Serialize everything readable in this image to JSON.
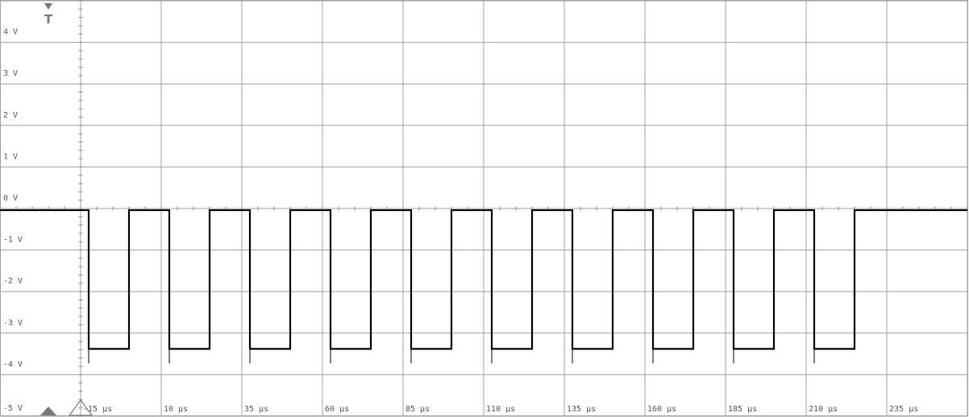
{
  "chart_data": {
    "type": "line",
    "title": "",
    "xlabel": "",
    "ylabel": "",
    "xlim": [
      -40,
      260
    ],
    "ylim": [
      -5,
      5
    ],
    "grid": true,
    "y_ticks": [
      {
        "value": 4,
        "label": "4 V"
      },
      {
        "value": 3,
        "label": "3 V"
      },
      {
        "value": 2,
        "label": "2 V"
      },
      {
        "value": 1,
        "label": "1 V"
      },
      {
        "value": 0,
        "label": "0 V"
      },
      {
        "value": -1,
        "label": "-1 V"
      },
      {
        "value": -2,
        "label": "-2 V"
      },
      {
        "value": -3,
        "label": "-3 V"
      },
      {
        "value": -4,
        "label": "-4 V"
      },
      {
        "value": -5,
        "label": "-5 V"
      }
    ],
    "x_ticks": [
      {
        "value": -15,
        "label": "-15 µs"
      },
      {
        "value": 10,
        "label": "10 µs"
      },
      {
        "value": 35,
        "label": "35 µs"
      },
      {
        "value": 60,
        "label": "60 µs"
      },
      {
        "value": 85,
        "label": "85 µs"
      },
      {
        "value": 110,
        "label": "110 µs"
      },
      {
        "value": 135,
        "label": "135 µs"
      },
      {
        "value": 160,
        "label": "160 µs"
      },
      {
        "value": 185,
        "label": "185 µs"
      },
      {
        "value": 210,
        "label": "210 µs"
      },
      {
        "value": 235,
        "label": "235 µs"
      }
    ],
    "series": [
      {
        "color": "#000000",
        "high_level": -0.04,
        "low_level": -3.38,
        "pulses": [
          {
            "fall": -12.5,
            "rise": 0
          },
          {
            "fall": 12.5,
            "rise": 25
          },
          {
            "fall": 37.5,
            "rise": 50
          },
          {
            "fall": 62.5,
            "rise": 75
          },
          {
            "fall": 87.5,
            "rise": 100
          },
          {
            "fall": 112.5,
            "rise": 125
          },
          {
            "fall": 137.5,
            "rise": 150
          },
          {
            "fall": 162.5,
            "rise": 175
          },
          {
            "fall": 187.5,
            "rise": 200
          },
          {
            "fall": 212.5,
            "rise": 225
          }
        ]
      }
    ],
    "trigger": {
      "label": "T",
      "time": -25,
      "color": "#777777"
    }
  },
  "colors": {
    "grid": "#a0a0a0",
    "trace": "#000000",
    "axis_ticks": "#888888",
    "background": "#ffffff"
  }
}
